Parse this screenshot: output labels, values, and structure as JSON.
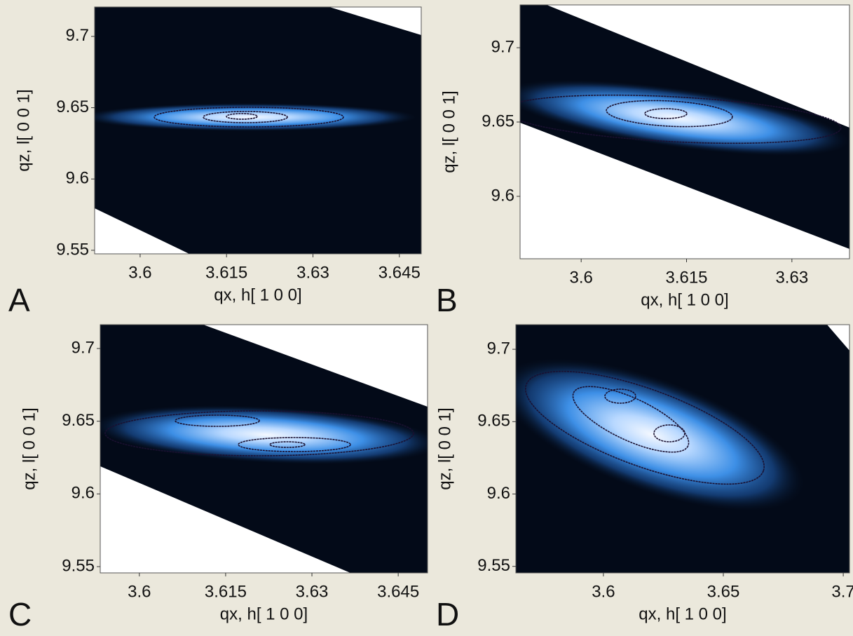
{
  "chart_data": [
    {
      "type": "heatmap",
      "panel": "A",
      "xlabel": "qx, h[ 1 0 0]",
      "ylabel": "qz, l[ 0 0 1]",
      "xlim": [
        3.5921,
        3.6488
      ],
      "ylim": [
        9.5475,
        9.7206
      ],
      "xticks": [
        3.6,
        3.615,
        3.63,
        3.645
      ],
      "yticks": [
        9.55,
        9.6,
        9.65,
        9.7
      ]
    },
    {
      "type": "heatmap",
      "panel": "B",
      "xlabel": "qx, h[ 1 0 0]",
      "ylabel": "qz, l[ 0 0 1]",
      "xlim": [
        3.5913,
        3.6382
      ],
      "ylim": [
        9.558,
        9.7288
      ],
      "xticks": [
        3.6,
        3.615,
        3.63
      ],
      "yticks": [
        9.6,
        9.65,
        9.7
      ]
    },
    {
      "type": "heatmap",
      "panel": "C",
      "xlabel": "qx, h[ 1 0 0]",
      "ylabel": "qz, l[ 0 0 1]",
      "xlim": [
        3.5932,
        3.6501
      ],
      "ylim": [
        9.5457,
        9.7164
      ],
      "xticks": [
        3.6,
        3.615,
        3.63,
        3.645
      ],
      "yticks": [
        9.55,
        9.6,
        9.65,
        9.7
      ]
    },
    {
      "type": "heatmap",
      "panel": "D",
      "xlabel": "qx, h[ 1 0 0]",
      "ylabel": "qz, l[ 0 0 1]",
      "xlim": [
        3.5635,
        3.7026
      ],
      "ylim": [
        9.5455,
        9.717
      ],
      "xticks": [
        3.6,
        3.65,
        3.7
      ],
      "yticks": [
        9.55,
        9.6,
        9.65,
        9.7
      ]
    }
  ]
}
